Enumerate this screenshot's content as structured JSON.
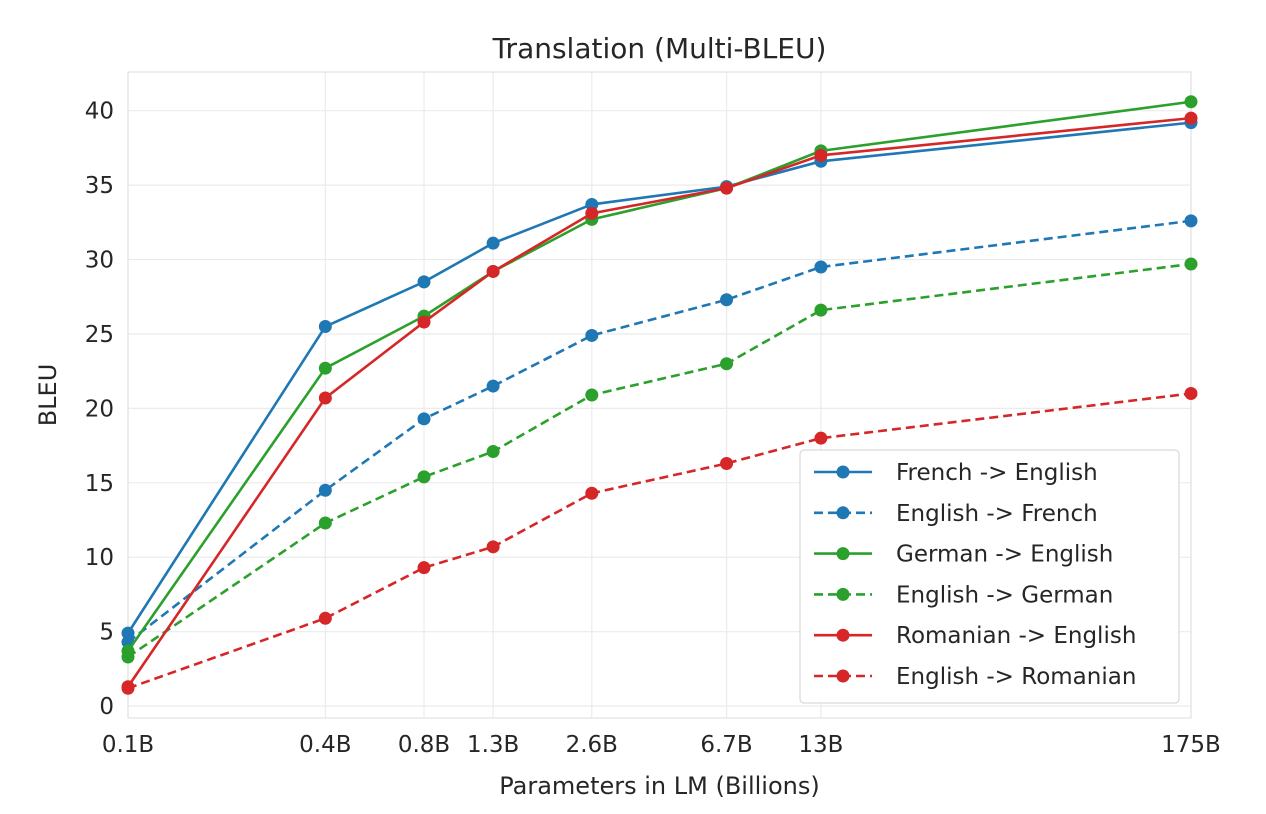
{
  "chart_data": {
    "type": "line",
    "title": "Translation (Multi-BLEU)",
    "xlabel": "Parameters in LM (Billions)",
    "ylabel": "BLEU",
    "x_scale": "log",
    "x": [
      0.1,
      0.4,
      0.8,
      1.3,
      2.6,
      6.7,
      13,
      175
    ],
    "x_tick_labels": [
      "0.1B",
      "0.4B",
      "0.8B",
      "1.3B",
      "2.6B",
      "6.7B",
      "13B",
      "175B"
    ],
    "y_ticks": [
      0,
      5,
      10,
      15,
      20,
      25,
      30,
      35,
      40
    ],
    "ylim": [
      -0.8,
      42.6
    ],
    "grid": true,
    "legend_position": "lower-right",
    "series": [
      {
        "name": "French -> English",
        "color": "#1f77b4",
        "linestyle": "solid",
        "values": [
          4.9,
          25.5,
          28.5,
          31.1,
          33.7,
          34.9,
          36.6,
          39.2
        ]
      },
      {
        "name": "English -> French",
        "color": "#1f77b4",
        "linestyle": "dashed",
        "values": [
          4.3,
          14.5,
          19.3,
          21.5,
          24.9,
          27.3,
          29.5,
          32.6
        ]
      },
      {
        "name": "German -> English",
        "color": "#2ca02c",
        "linestyle": "solid",
        "values": [
          3.7,
          22.7,
          26.2,
          29.2,
          32.7,
          34.8,
          37.3,
          40.6
        ]
      },
      {
        "name": "English -> German",
        "color": "#2ca02c",
        "linestyle": "dashed",
        "values": [
          3.3,
          12.3,
          15.4,
          17.1,
          20.9,
          23.0,
          26.6,
          29.7
        ]
      },
      {
        "name": "Romanian -> English",
        "color": "#d62728",
        "linestyle": "solid",
        "values": [
          1.3,
          20.7,
          25.8,
          29.2,
          33.1,
          34.8,
          37.0,
          39.5
        ]
      },
      {
        "name": "English -> Romanian",
        "color": "#d62728",
        "linestyle": "dashed",
        "values": [
          1.2,
          5.9,
          9.3,
          10.7,
          14.3,
          16.3,
          18.0,
          21.0
        ]
      }
    ]
  }
}
